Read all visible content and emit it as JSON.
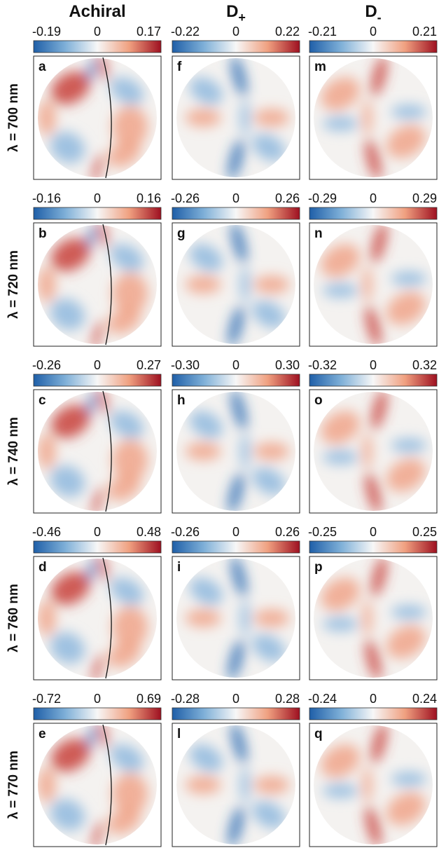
{
  "columns": [
    {
      "title": "Achiral"
    },
    {
      "title": "D",
      "title_sub": "+"
    },
    {
      "title": "D",
      "title_sub": "-"
    }
  ],
  "rows": [
    {
      "label": "λ = 700 nm",
      "panels": [
        {
          "letter": "a",
          "scale": [
            "-0.19",
            "0",
            "0.17"
          ]
        },
        {
          "letter": "f",
          "scale": [
            "-0.22",
            "0",
            "0.22"
          ]
        },
        {
          "letter": "m",
          "scale": [
            "-0.21",
            "0",
            "0.21"
          ]
        }
      ]
    },
    {
      "label": "λ = 720 nm",
      "panels": [
        {
          "letter": "b",
          "scale": [
            "-0.16",
            "0",
            "0.16"
          ]
        },
        {
          "letter": "g",
          "scale": [
            "-0.26",
            "0",
            "0.26"
          ]
        },
        {
          "letter": "n",
          "scale": [
            "-0.29",
            "0",
            "0.29"
          ]
        }
      ]
    },
    {
      "label": "λ = 740 nm",
      "panels": [
        {
          "letter": "c",
          "scale": [
            "-0.26",
            "0",
            "0.27"
          ]
        },
        {
          "letter": "h",
          "scale": [
            "-0.30",
            "0",
            "0.30"
          ]
        },
        {
          "letter": "o",
          "scale": [
            "-0.32",
            "0",
            "0.32"
          ]
        }
      ]
    },
    {
      "label": "λ = 760 nm",
      "panels": [
        {
          "letter": "d",
          "scale": [
            "-0.46",
            "0",
            "0.48"
          ]
        },
        {
          "letter": "i",
          "scale": [
            "-0.26",
            "0",
            "0.26"
          ]
        },
        {
          "letter": "p",
          "scale": [
            "-0.25",
            "0",
            "0.25"
          ]
        }
      ]
    },
    {
      "label": "λ = 770 nm",
      "panels": [
        {
          "letter": "e",
          "scale": [
            "-0.72",
            "0",
            "0.69"
          ]
        },
        {
          "letter": "l",
          "scale": [
            "-0.28",
            "0",
            "0.28"
          ]
        },
        {
          "letter": "q",
          "scale": [
            "-0.24",
            "0",
            "0.24"
          ]
        }
      ]
    }
  ]
}
